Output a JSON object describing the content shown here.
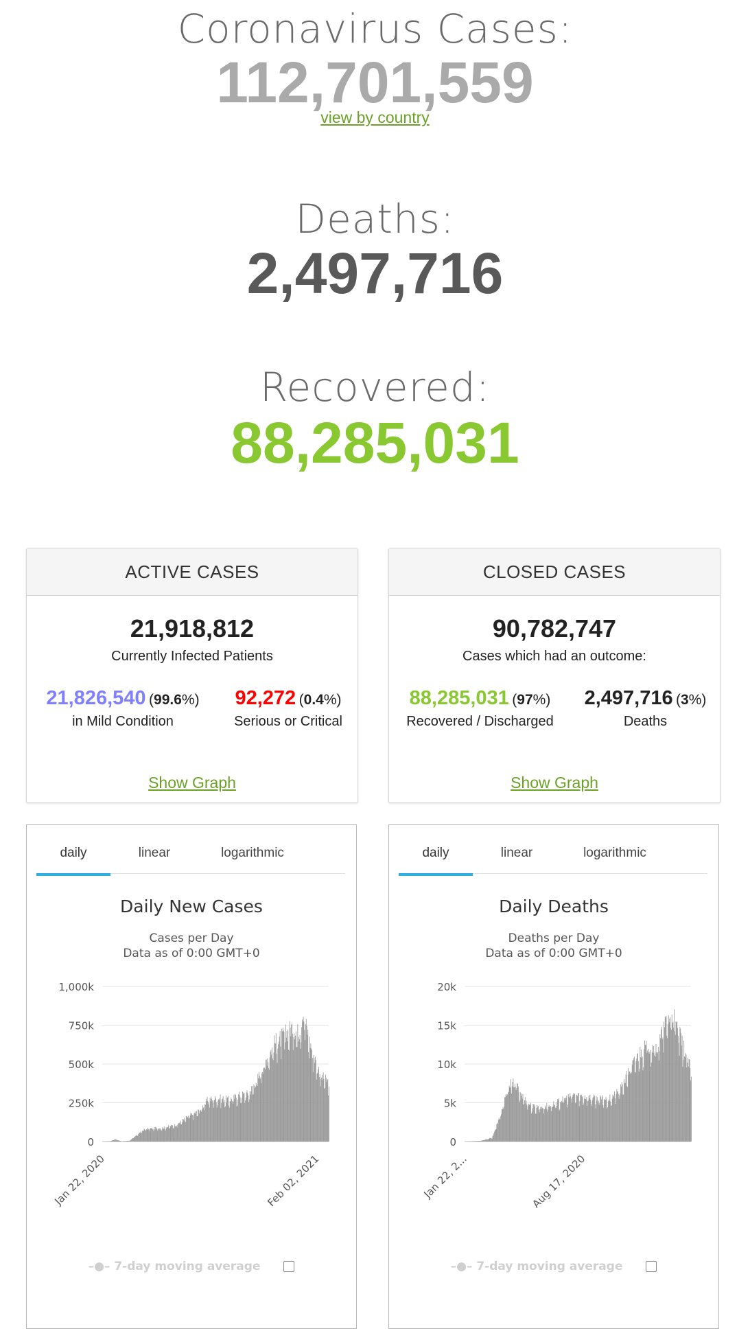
{
  "header": {
    "cases_label": "Coronavirus Cases:",
    "cases_value": "112,701,559",
    "view_link": "view by country",
    "deaths_label": "Deaths:",
    "deaths_value": "2,497,716",
    "recovered_label": "Recovered:",
    "recovered_value": "88,285,031"
  },
  "colors": {
    "cases": "#aaaaaa",
    "deaths": "#595959",
    "recovered": "#8ac832",
    "mild": "#8080ff",
    "serious": "#ff0000",
    "link": "#6aa126",
    "tab_active": "#2db0e3",
    "bars": "#999999"
  },
  "active": {
    "title": "ACTIVE CASES",
    "total": "21,918,812",
    "subtitle": "Currently Infected Patients",
    "mild_value": "21,826,540",
    "mild_pct": "99.6",
    "mild_label": "in Mild Condition",
    "serious_value": "92,272",
    "serious_pct": "0.4",
    "serious_label": "Serious or Critical",
    "show_graph": "Show Graph"
  },
  "closed": {
    "title": "CLOSED CASES",
    "total": "90,782,747",
    "subtitle": "Cases which had an outcome:",
    "recovered_value": "88,285,031",
    "recovered_pct": "97",
    "recovered_label": "Recovered / Discharged",
    "deaths_value": "2,497,716",
    "deaths_pct": "3",
    "deaths_label": "Deaths",
    "show_graph": "Show Graph"
  },
  "tabs": [
    "daily",
    "linear",
    "logarithmic"
  ],
  "legend_label": "7-day moving average",
  "chart_data": [
    {
      "type": "bar",
      "title": "Daily New Cases",
      "subtitle_line1": "Cases per Day",
      "subtitle_line2": "Data as of 0:00 GMT+0",
      "ylim": [
        0,
        1000000
      ],
      "yticks": [
        0,
        250000,
        500000,
        750000,
        1000000
      ],
      "ytick_labels": [
        "0",
        "250k",
        "500k",
        "750k",
        "1,000k"
      ],
      "x_range": [
        "Jan 22, 2020",
        "Feb 23, 2021"
      ],
      "xtick_labels": [
        "Jan 22, 2020",
        "Feb 02, 2021"
      ],
      "xtick_positions": [
        "2020-01-22",
        "2021-02-02"
      ],
      "series_points": [
        [
          "2020-01-22",
          500
        ],
        [
          "2020-02-05",
          3000
        ],
        [
          "2020-02-13",
          15000
        ],
        [
          "2020-02-25",
          1500
        ],
        [
          "2020-03-10",
          6000
        ],
        [
          "2020-03-25",
          50000
        ],
        [
          "2020-04-05",
          80000
        ],
        [
          "2020-04-20",
          85000
        ],
        [
          "2020-05-10",
          90000
        ],
        [
          "2020-05-31",
          110000
        ],
        [
          "2020-06-20",
          160000
        ],
        [
          "2020-07-10",
          200000
        ],
        [
          "2020-07-25",
          270000
        ],
        [
          "2020-08-15",
          280000
        ],
        [
          "2020-09-01",
          270000
        ],
        [
          "2020-09-20",
          300000
        ],
        [
          "2020-10-05",
          310000
        ],
        [
          "2020-10-20",
          400000
        ],
        [
          "2020-11-05",
          530000
        ],
        [
          "2020-11-20",
          640000
        ],
        [
          "2020-12-05",
          680000
        ],
        [
          "2020-12-20",
          740000
        ],
        [
          "2021-01-01",
          700000
        ],
        [
          "2021-01-08",
          840000
        ],
        [
          "2021-01-20",
          650000
        ],
        [
          "2021-02-01",
          500000
        ],
        [
          "2021-02-10",
          420000
        ],
        [
          "2021-02-23",
          380000
        ]
      ]
    },
    {
      "type": "bar",
      "title": "Daily Deaths",
      "subtitle_line1": "Deaths per Day",
      "subtitle_line2": "Data as of 0:00 GMT+0",
      "ylim": [
        0,
        20000
      ],
      "yticks": [
        0,
        5000,
        10000,
        15000,
        20000
      ],
      "ytick_labels": [
        "0",
        "5k",
        "10k",
        "15k",
        "20k"
      ],
      "x_range": [
        "Jan 22, 2020",
        "Feb 23, 2021"
      ],
      "xtick_labels": [
        "Jan 22, 2...",
        "Aug 17, 2020"
      ],
      "xtick_positions": [
        "2020-01-22",
        "2020-08-17"
      ],
      "series_points": [
        [
          "2020-01-22",
          10
        ],
        [
          "2020-02-20",
          100
        ],
        [
          "2020-03-10",
          500
        ],
        [
          "2020-03-25",
          3500
        ],
        [
          "2020-04-10",
          7500
        ],
        [
          "2020-04-20",
          7500
        ],
        [
          "2020-05-05",
          5500
        ],
        [
          "2020-05-20",
          4500
        ],
        [
          "2020-06-10",
          4500
        ],
        [
          "2020-06-25",
          4800
        ],
        [
          "2020-07-15",
          5500
        ],
        [
          "2020-08-01",
          6000
        ],
        [
          "2020-08-20",
          5800
        ],
        [
          "2020-09-10",
          5500
        ],
        [
          "2020-10-01",
          5500
        ],
        [
          "2020-10-20",
          6500
        ],
        [
          "2020-11-05",
          9000
        ],
        [
          "2020-11-25",
          11500
        ],
        [
          "2020-12-10",
          12500
        ],
        [
          "2020-12-25",
          12000
        ],
        [
          "2021-01-10",
          15500
        ],
        [
          "2021-01-20",
          16500
        ],
        [
          "2021-02-01",
          14000
        ],
        [
          "2021-02-15",
          11000
        ],
        [
          "2021-02-23",
          9000
        ]
      ]
    }
  ]
}
